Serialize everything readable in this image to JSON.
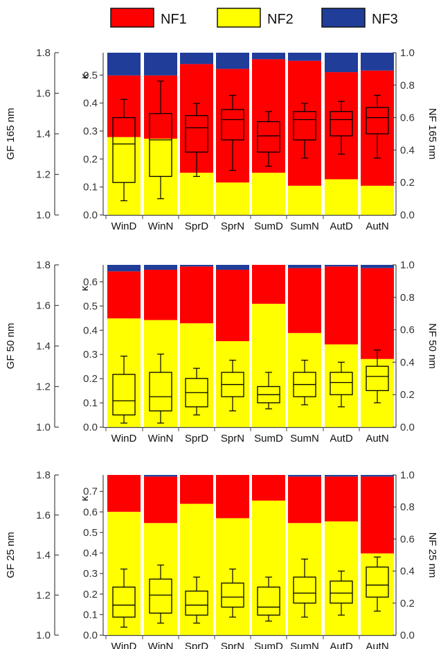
{
  "legend": [
    {
      "name": "NF1",
      "color": "#ff0000"
    },
    {
      "name": "NF2",
      "color": "#ffff00"
    },
    {
      "name": "NF3",
      "color": "#1f3d99"
    }
  ],
  "chart_data": [
    {
      "type": "bar",
      "title": "",
      "categories": [
        "WinD",
        "WinN",
        "SprD",
        "SprN",
        "SumD",
        "SumN",
        "AutD",
        "AutN"
      ],
      "gf_label": "GF 165 nm",
      "kappa_label": "κ",
      "nf_label": "NF 165 nm",
      "gf_ticks": [
        "1.0",
        "1.2",
        "1.4",
        "1.6",
        "1.8"
      ],
      "kappa_ticks": [
        "0.0",
        "0.1",
        "0.2",
        "0.3",
        "0.4",
        "0.5"
      ],
      "nf_ticks": [
        "0.0",
        "0.2",
        "0.4",
        "0.6",
        "0.8",
        "1.0"
      ],
      "gf_range": [
        1.0,
        1.8
      ],
      "kappa_range": [
        0.0,
        0.58
      ],
      "nf_range": [
        0.0,
        1.0
      ],
      "series": [
        {
          "name": "NF2",
          "values": [
            0.48,
            0.47,
            0.26,
            0.2,
            0.26,
            0.18,
            0.22,
            0.18
          ]
        },
        {
          "name": "NF1",
          "values": [
            0.38,
            0.39,
            0.67,
            0.7,
            0.7,
            0.77,
            0.66,
            0.71
          ]
        },
        {
          "name": "NF3",
          "values": [
            0.14,
            0.14,
            0.07,
            0.1,
            0.04,
            0.05,
            0.12,
            0.11
          ]
        }
      ],
      "boxes": [
        {
          "min": 1.07,
          "q1": 1.16,
          "median": 1.35,
          "q3": 1.48,
          "max": 1.57
        },
        {
          "min": 1.08,
          "q1": 1.19,
          "median": 1.37,
          "q3": 1.5,
          "max": 1.66
        },
        {
          "min": 1.19,
          "q1": 1.31,
          "median": 1.43,
          "q3": 1.49,
          "max": 1.55
        },
        {
          "min": 1.22,
          "q1": 1.37,
          "median": 1.47,
          "q3": 1.52,
          "max": 1.59
        },
        {
          "min": 1.24,
          "q1": 1.31,
          "median": 1.39,
          "q3": 1.46,
          "max": 1.51
        },
        {
          "min": 1.28,
          "q1": 1.37,
          "median": 1.47,
          "q3": 1.51,
          "max": 1.55
        },
        {
          "min": 1.3,
          "q1": 1.39,
          "median": 1.47,
          "q3": 1.51,
          "max": 1.56
        },
        {
          "min": 1.28,
          "q1": 1.4,
          "median": 1.48,
          "q3": 1.53,
          "max": 1.59
        }
      ]
    },
    {
      "type": "bar",
      "title": "",
      "categories": [
        "WinD",
        "WinN",
        "SprD",
        "SprN",
        "SumD",
        "SumN",
        "AutD",
        "AutN"
      ],
      "gf_label": "GF 50 nm",
      "kappa_label": "κ",
      "nf_label": "NF 50 nm",
      "gf_ticks": [
        "1.0",
        "1.2",
        "1.4",
        "1.6",
        "1.8"
      ],
      "kappa_ticks": [
        "0.0",
        "0.1",
        "0.2",
        "0.3",
        "0.4",
        "0.5",
        "0.6"
      ],
      "nf_ticks": [
        "0.0",
        "0.2",
        "0.4",
        "0.6",
        "0.8",
        "1.0"
      ],
      "gf_range": [
        1.0,
        1.8
      ],
      "kappa_range": [
        0.0,
        0.67
      ],
      "nf_range": [
        0.0,
        1.0
      ],
      "series": [
        {
          "name": "NF2",
          "values": [
            0.67,
            0.66,
            0.64,
            0.53,
            0.76,
            0.58,
            0.51,
            0.42
          ]
        },
        {
          "name": "NF1",
          "values": [
            0.29,
            0.31,
            0.35,
            0.44,
            0.24,
            0.4,
            0.48,
            0.56
          ]
        },
        {
          "name": "NF3",
          "values": [
            0.04,
            0.03,
            0.01,
            0.03,
            0.0,
            0.02,
            0.01,
            0.02
          ]
        }
      ],
      "boxes": [
        {
          "min": 1.02,
          "q1": 1.06,
          "median": 1.13,
          "q3": 1.26,
          "max": 1.35
        },
        {
          "min": 1.02,
          "q1": 1.08,
          "median": 1.15,
          "q3": 1.27,
          "max": 1.36
        },
        {
          "min": 1.06,
          "q1": 1.1,
          "median": 1.17,
          "q3": 1.24,
          "max": 1.29
        },
        {
          "min": 1.08,
          "q1": 1.15,
          "median": 1.21,
          "q3": 1.27,
          "max": 1.33
        },
        {
          "min": 1.09,
          "q1": 1.12,
          "median": 1.16,
          "q3": 1.2,
          "max": 1.27
        },
        {
          "min": 1.11,
          "q1": 1.15,
          "median": 1.21,
          "q3": 1.27,
          "max": 1.33
        },
        {
          "min": 1.1,
          "q1": 1.16,
          "median": 1.22,
          "q3": 1.27,
          "max": 1.32
        },
        {
          "min": 1.12,
          "q1": 1.18,
          "median": 1.25,
          "q3": 1.3,
          "max": 1.38
        }
      ]
    },
    {
      "type": "bar",
      "title": "",
      "categories": [
        "WinD",
        "WinN",
        "SprD",
        "SprN",
        "SumD",
        "SumN",
        "AutD",
        "AutN"
      ],
      "gf_label": "GF 25 nm",
      "kappa_label": "κ",
      "nf_label": "NF 25 nm",
      "gf_ticks": [
        "1.0",
        "1.2",
        "1.4",
        "1.6",
        "1.8"
      ],
      "kappa_ticks": [
        "0.0",
        "0.1",
        "0.2",
        "0.3",
        "0.4",
        "0.5",
        "0.6",
        "0.7"
      ],
      "nf_ticks": [
        "0.0",
        "0.2",
        "0.4",
        "0.6",
        "0.8",
        "1.0"
      ],
      "gf_range": [
        1.0,
        1.8
      ],
      "kappa_range": [
        0.0,
        0.78
      ],
      "nf_range": [
        0.0,
        1.0
      ],
      "series": [
        {
          "name": "NF2",
          "values": [
            0.77,
            0.7,
            0.82,
            0.73,
            0.84,
            0.7,
            0.71,
            0.51
          ]
        },
        {
          "name": "NF1",
          "values": [
            0.23,
            0.29,
            0.18,
            0.27,
            0.16,
            0.29,
            0.28,
            0.48
          ]
        },
        {
          "name": "NF3",
          "values": [
            0.0,
            0.01,
            0.0,
            0.0,
            0.0,
            0.01,
            0.01,
            0.01
          ]
        }
      ],
      "boxes": [
        {
          "min": 1.04,
          "q1": 1.09,
          "median": 1.15,
          "q3": 1.24,
          "max": 1.33
        },
        {
          "min": 1.06,
          "q1": 1.11,
          "median": 1.2,
          "q3": 1.28,
          "max": 1.35
        },
        {
          "min": 1.06,
          "q1": 1.1,
          "median": 1.15,
          "q3": 1.22,
          "max": 1.29
        },
        {
          "min": 1.09,
          "q1": 1.14,
          "median": 1.19,
          "q3": 1.26,
          "max": 1.33
        },
        {
          "min": 1.07,
          "q1": 1.1,
          "median": 1.14,
          "q3": 1.24,
          "max": 1.29
        },
        {
          "min": 1.09,
          "q1": 1.16,
          "median": 1.21,
          "q3": 1.29,
          "max": 1.38
        },
        {
          "min": 1.1,
          "q1": 1.16,
          "median": 1.21,
          "q3": 1.27,
          "max": 1.32
        },
        {
          "min": 1.12,
          "q1": 1.19,
          "median": 1.25,
          "q3": 1.34,
          "max": 1.39
        }
      ]
    }
  ]
}
